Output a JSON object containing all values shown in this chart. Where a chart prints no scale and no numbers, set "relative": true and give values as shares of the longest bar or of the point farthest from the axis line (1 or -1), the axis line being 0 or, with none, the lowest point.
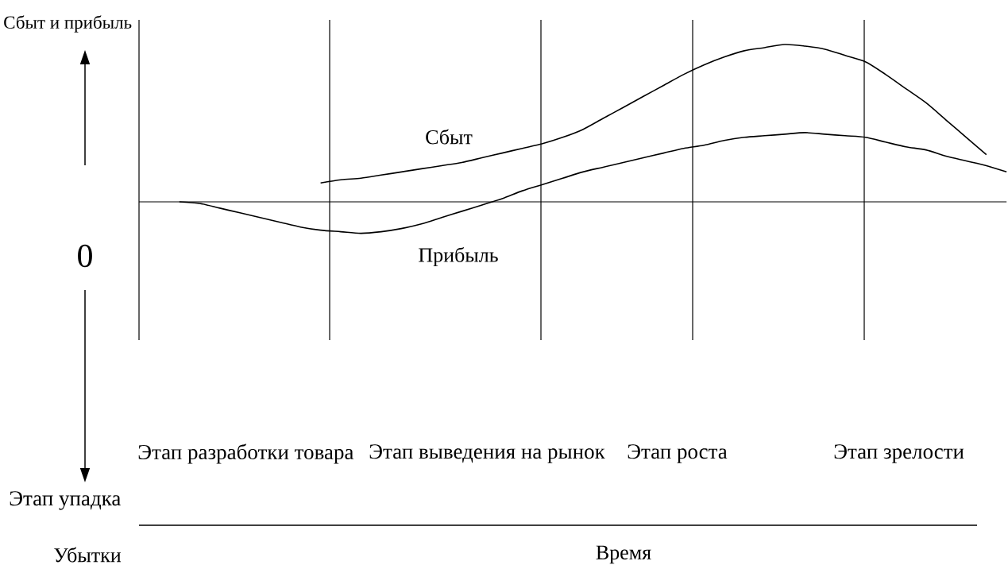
{
  "chart_data": {
    "type": "line",
    "relative": true,
    "ylabel": "Сбыт и прибыль",
    "annotations": [
      "0",
      "Этап разработки товара",
      "Этап выведения на рынок",
      "Этап роста",
      "Этап зрелости",
      "Этап упадка",
      "Убытки",
      "Время"
    ],
    "categories": [
      null,
      null,
      null,
      null,
      null,
      null,
      null,
      null,
      null,
      null,
      null,
      null,
      null,
      null,
      null,
      null,
      null,
      null,
      null,
      null,
      null,
      null,
      null,
      null,
      null,
      null,
      null,
      null,
      null,
      null,
      null,
      null,
      null,
      null,
      null,
      null,
      null,
      null,
      null,
      null,
      null,
      null,
      null,
      null
    ],
    "series": [
      {
        "name": "Сбыт",
        "color": "#000000",
        "values": [
          null,
          null,
          null,
          null,
          null,
          null,
          null,
          null,
          null,
          0.12,
          0.14,
          0.15,
          0.17,
          0.19,
          0.21,
          0.23,
          0.25,
          0.28,
          0.31,
          0.34,
          0.37,
          0.41,
          0.46,
          0.53,
          0.6,
          0.67,
          0.74,
          0.81,
          0.87,
          0.92,
          0.96,
          0.98,
          1,
          0.99,
          0.97,
          0.93,
          0.89,
          0.81,
          0.72,
          0.63,
          0.52,
          0.41,
          0.3,
          null
        ]
      },
      {
        "name": "Прибыль",
        "color": "#000000",
        "values": [
          null,
          null,
          0,
          -0.01,
          -0.04,
          -0.07,
          -0.1,
          -0.13,
          -0.16,
          -0.18,
          -0.19,
          -0.2,
          -0.19,
          -0.17,
          -0.14,
          -0.1,
          -0.06,
          -0.02,
          0.02,
          0.07,
          0.11,
          0.15,
          0.19,
          0.22,
          0.25,
          0.28,
          0.31,
          0.34,
          0.36,
          0.39,
          0.41,
          0.42,
          0.43,
          0.44,
          0.43,
          0.42,
          0.41,
          0.38,
          0.35,
          0.33,
          0.29,
          0.26,
          0.23,
          0.19
        ]
      }
    ]
  }
}
